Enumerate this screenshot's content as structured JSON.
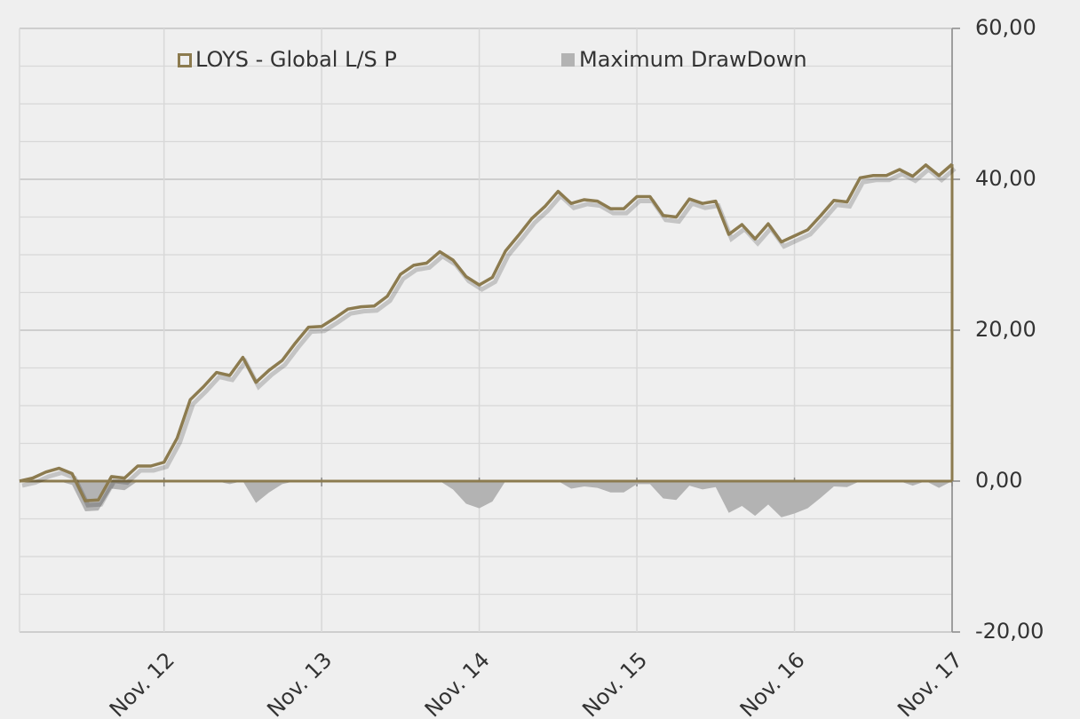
{
  "chart_data": {
    "type": "line",
    "categories": [
      null,
      null,
      null,
      null,
      null,
      null,
      null,
      null,
      null,
      null,
      null,
      "Nov. 12",
      null,
      null,
      null,
      null,
      null,
      null,
      null,
      null,
      null,
      null,
      null,
      "Nov. 13",
      null,
      null,
      null,
      null,
      null,
      null,
      null,
      null,
      null,
      null,
      null,
      "Nov. 14",
      null,
      null,
      null,
      null,
      null,
      null,
      null,
      null,
      null,
      null,
      null,
      "Nov. 15",
      null,
      null,
      null,
      null,
      null,
      null,
      null,
      null,
      null,
      null,
      null,
      "Nov. 16",
      null,
      null,
      null,
      null,
      null,
      null,
      null,
      null,
      null,
      null,
      null,
      "Nov. 17"
    ],
    "series": [
      {
        "name": "LOYS - Global L/S P",
        "color": "#8c7b4f",
        "kind": "line",
        "values": [
          0,
          0.4,
          1.2,
          1.7,
          1.0,
          -2.6,
          -2.5,
          0.6,
          0.4,
          2.0,
          2.0,
          2.5,
          5.7,
          10.8,
          12.5,
          14.4,
          14.0,
          16.4,
          13.1,
          14.7,
          16.0,
          18.3,
          20.4,
          20.5,
          21.6,
          22.8,
          23.1,
          23.2,
          24.5,
          27.4,
          28.6,
          28.9,
          30.4,
          29.3,
          27.1,
          26.0,
          27.0,
          30.5,
          32.6,
          34.8,
          36.4,
          38.4,
          36.8,
          37.3,
          37.1,
          36.1,
          36.1,
          37.7,
          37.7,
          35.2,
          35.0,
          37.4,
          36.8,
          37.1,
          32.7,
          34.0,
          32.1,
          34.1,
          31.7,
          32.5,
          33.3,
          35.2,
          37.2,
          37.0,
          40.2,
          40.5,
          40.5,
          41.3,
          40.4,
          41.9,
          40.5,
          42.0
        ]
      },
      {
        "name": "Maximum DrawDown",
        "color": "#b3b3b3",
        "kind": "area",
        "values": [
          0,
          0,
          0,
          0,
          -0.5,
          -4.0,
          -3.9,
          -1.0,
          -1.2,
          0,
          0,
          0,
          0,
          0,
          0,
          0,
          -0.4,
          0,
          -2.9,
          -1.5,
          -0.4,
          0,
          0,
          0,
          0,
          0,
          0,
          0,
          0,
          0,
          0,
          0,
          0,
          -1.1,
          -3.0,
          -3.6,
          -2.7,
          0,
          0,
          0,
          0,
          0,
          -1.0,
          -0.7,
          -0.9,
          -1.5,
          -1.5,
          -0.4,
          -0.4,
          -2.3,
          -2.5,
          -0.6,
          -1.1,
          -0.8,
          -4.2,
          -3.3,
          -4.6,
          -3.1,
          -4.8,
          -4.3,
          -3.6,
          -2.2,
          -0.7,
          -0.8,
          0,
          0,
          0,
          0,
          -0.6,
          0,
          -0.9,
          0
        ]
      }
    ],
    "ylim": [
      -20,
      60
    ],
    "yticks": [
      {
        "value": -20,
        "label": "-20,00"
      },
      {
        "value": 0,
        "label": "0,00"
      },
      {
        "value": 20,
        "label": "20,00"
      },
      {
        "value": 40,
        "label": "40,00"
      },
      {
        "value": 60,
        "label": "60,00"
      }
    ],
    "yminorticks": [
      -15,
      -10,
      -5,
      5,
      10,
      15,
      25,
      30,
      35,
      45,
      50,
      55
    ],
    "grid": true
  }
}
